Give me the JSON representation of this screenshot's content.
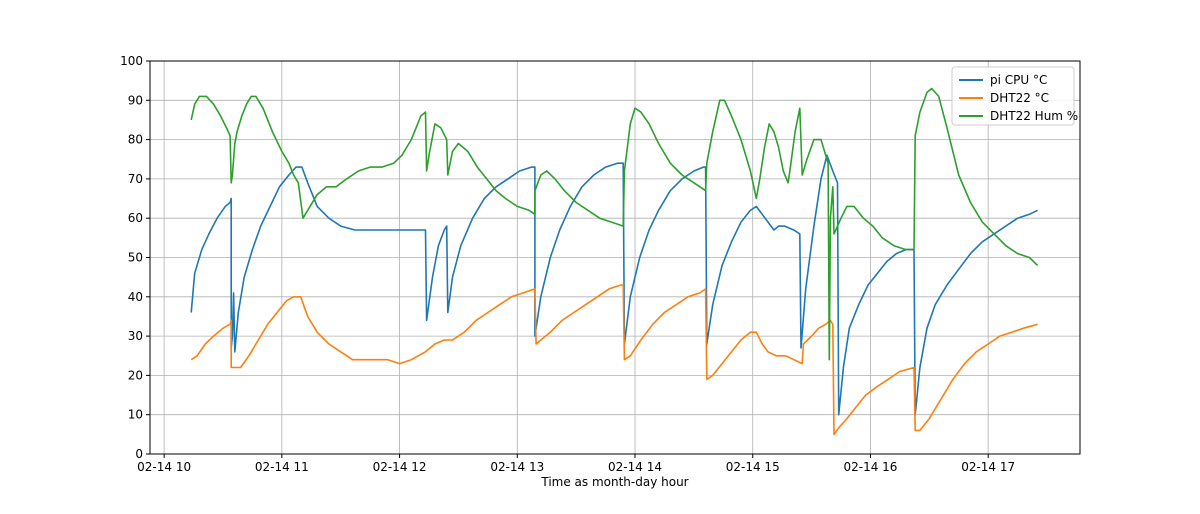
{
  "chart_data": {
    "type": "line",
    "title": "",
    "xlabel": "Time as month-day hour",
    "ylabel": "",
    "xlim": [
      -0.12,
      7.78
    ],
    "ylim": [
      0,
      100
    ],
    "x_ticks": [
      0,
      1,
      2,
      3,
      4,
      5,
      6,
      7
    ],
    "x_tick_labels": [
      "02-14 10",
      "02-14 11",
      "02-14 12",
      "02-14 13",
      "02-14 14",
      "02-14 15",
      "02-14 16",
      "02-14 17"
    ],
    "y_ticks": [
      0,
      10,
      20,
      30,
      40,
      50,
      60,
      70,
      80,
      90,
      100
    ],
    "grid": true,
    "legend_position": "top-right",
    "series": [
      {
        "name": "pi CPU °C",
        "color": "#1f77b4",
        "points": [
          [
            0.23,
            36
          ],
          [
            0.26,
            46
          ],
          [
            0.32,
            52
          ],
          [
            0.38,
            56
          ],
          [
            0.45,
            60
          ],
          [
            0.52,
            63
          ],
          [
            0.56,
            64
          ],
          [
            0.57,
            65
          ],
          [
            0.57,
            27
          ],
          [
            0.58,
            30
          ],
          [
            0.59,
            41
          ],
          [
            0.6,
            26
          ],
          [
            0.63,
            36
          ],
          [
            0.68,
            45
          ],
          [
            0.75,
            52
          ],
          [
            0.82,
            58
          ],
          [
            0.9,
            63
          ],
          [
            0.98,
            68
          ],
          [
            1.06,
            71
          ],
          [
            1.12,
            73
          ],
          [
            1.17,
            73
          ],
          [
            1.22,
            69
          ],
          [
            1.3,
            63
          ],
          [
            1.4,
            60
          ],
          [
            1.5,
            58
          ],
          [
            1.62,
            57
          ],
          [
            1.75,
            57
          ],
          [
            1.9,
            57
          ],
          [
            2.0,
            57
          ],
          [
            2.1,
            57
          ],
          [
            2.22,
            57
          ],
          [
            2.23,
            34
          ],
          [
            2.28,
            45
          ],
          [
            2.33,
            53
          ],
          [
            2.38,
            57
          ],
          [
            2.4,
            58
          ],
          [
            2.41,
            36
          ],
          [
            2.45,
            45
          ],
          [
            2.52,
            53
          ],
          [
            2.62,
            60
          ],
          [
            2.72,
            65
          ],
          [
            2.82,
            68
          ],
          [
            2.92,
            70
          ],
          [
            3.02,
            72
          ],
          [
            3.12,
            73
          ],
          [
            3.15,
            73
          ],
          [
            3.15,
            30
          ],
          [
            3.2,
            40
          ],
          [
            3.28,
            50
          ],
          [
            3.36,
            57
          ],
          [
            3.45,
            63
          ],
          [
            3.55,
            68
          ],
          [
            3.65,
            71
          ],
          [
            3.75,
            73
          ],
          [
            3.85,
            74
          ],
          [
            3.9,
            74
          ],
          [
            3.91,
            28
          ],
          [
            3.96,
            40
          ],
          [
            4.04,
            50
          ],
          [
            4.12,
            57
          ],
          [
            4.2,
            62
          ],
          [
            4.3,
            67
          ],
          [
            4.4,
            70
          ],
          [
            4.5,
            72
          ],
          [
            4.58,
            73
          ],
          [
            4.6,
            73
          ],
          [
            4.61,
            28
          ],
          [
            4.66,
            38
          ],
          [
            4.74,
            48
          ],
          [
            4.82,
            54
          ],
          [
            4.9,
            59
          ],
          [
            4.98,
            62
          ],
          [
            5.03,
            63
          ],
          [
            5.08,
            61
          ],
          [
            5.13,
            59
          ],
          [
            5.18,
            57
          ],
          [
            5.22,
            58
          ],
          [
            5.27,
            58
          ],
          [
            5.35,
            57
          ],
          [
            5.4,
            56
          ],
          [
            5.41,
            27
          ],
          [
            5.45,
            42
          ],
          [
            5.52,
            58
          ],
          [
            5.58,
            70
          ],
          [
            5.63,
            76
          ],
          [
            5.68,
            72
          ],
          [
            5.72,
            69
          ],
          [
            5.73,
            10
          ],
          [
            5.77,
            22
          ],
          [
            5.82,
            32
          ],
          [
            5.9,
            38
          ],
          [
            5.98,
            43
          ],
          [
            6.06,
            46
          ],
          [
            6.14,
            49
          ],
          [
            6.22,
            51
          ],
          [
            6.3,
            52
          ],
          [
            6.37,
            52
          ],
          [
            6.38,
            10
          ],
          [
            6.42,
            22
          ],
          [
            6.48,
            32
          ],
          [
            6.55,
            38
          ],
          [
            6.65,
            43
          ],
          [
            6.75,
            47
          ],
          [
            6.85,
            51
          ],
          [
            6.95,
            54
          ],
          [
            7.05,
            56
          ],
          [
            7.15,
            58
          ],
          [
            7.25,
            60
          ],
          [
            7.35,
            61
          ],
          [
            7.42,
            62
          ]
        ]
      },
      {
        "name": "DHT22 °C",
        "color": "#ff7f0e",
        "points": [
          [
            0.23,
            24
          ],
          [
            0.28,
            25
          ],
          [
            0.35,
            28
          ],
          [
            0.42,
            30
          ],
          [
            0.5,
            32
          ],
          [
            0.56,
            33
          ],
          [
            0.57,
            34
          ],
          [
            0.57,
            22
          ],
          [
            0.65,
            22
          ],
          [
            0.72,
            25
          ],
          [
            0.8,
            29
          ],
          [
            0.88,
            33
          ],
          [
            0.96,
            36
          ],
          [
            1.04,
            39
          ],
          [
            1.1,
            40
          ],
          [
            1.16,
            40
          ],
          [
            1.22,
            35
          ],
          [
            1.3,
            31
          ],
          [
            1.4,
            28
          ],
          [
            1.5,
            26
          ],
          [
            1.6,
            24
          ],
          [
            1.75,
            24
          ],
          [
            1.9,
            24
          ],
          [
            2.0,
            23
          ],
          [
            2.1,
            24
          ],
          [
            2.22,
            26
          ],
          [
            2.3,
            28
          ],
          [
            2.38,
            29
          ],
          [
            2.45,
            29
          ],
          [
            2.55,
            31
          ],
          [
            2.65,
            34
          ],
          [
            2.75,
            36
          ],
          [
            2.85,
            38
          ],
          [
            2.95,
            40
          ],
          [
            3.05,
            41
          ],
          [
            3.15,
            42
          ],
          [
            3.16,
            28
          ],
          [
            3.2,
            29
          ],
          [
            3.28,
            31
          ],
          [
            3.38,
            34
          ],
          [
            3.48,
            36
          ],
          [
            3.58,
            38
          ],
          [
            3.68,
            40
          ],
          [
            3.78,
            42
          ],
          [
            3.88,
            43
          ],
          [
            3.9,
            43
          ],
          [
            3.91,
            24
          ],
          [
            3.96,
            25
          ],
          [
            4.05,
            29
          ],
          [
            4.15,
            33
          ],
          [
            4.25,
            36
          ],
          [
            4.35,
            38
          ],
          [
            4.45,
            40
          ],
          [
            4.55,
            41
          ],
          [
            4.6,
            42
          ],
          [
            4.61,
            19
          ],
          [
            4.66,
            20
          ],
          [
            4.74,
            23
          ],
          [
            4.82,
            26
          ],
          [
            4.9,
            29
          ],
          [
            4.98,
            31
          ],
          [
            5.03,
            31
          ],
          [
            5.08,
            28
          ],
          [
            5.13,
            26
          ],
          [
            5.2,
            25
          ],
          [
            5.28,
            25
          ],
          [
            5.35,
            24
          ],
          [
            5.42,
            23
          ],
          [
            5.43,
            28
          ],
          [
            5.5,
            30
          ],
          [
            5.56,
            32
          ],
          [
            5.62,
            33
          ],
          [
            5.66,
            34
          ],
          [
            5.68,
            33
          ],
          [
            5.69,
            5
          ],
          [
            5.74,
            7
          ],
          [
            5.8,
            9
          ],
          [
            5.88,
            12
          ],
          [
            5.96,
            15
          ],
          [
            6.05,
            17
          ],
          [
            6.15,
            19
          ],
          [
            6.25,
            21
          ],
          [
            6.37,
            22
          ],
          [
            6.38,
            6
          ],
          [
            6.42,
            6
          ],
          [
            6.5,
            9
          ],
          [
            6.6,
            14
          ],
          [
            6.7,
            19
          ],
          [
            6.8,
            23
          ],
          [
            6.9,
            26
          ],
          [
            7.0,
            28
          ],
          [
            7.1,
            30
          ],
          [
            7.2,
            31
          ],
          [
            7.3,
            32
          ],
          [
            7.42,
            33
          ]
        ]
      },
      {
        "name": "DHT22 Hum %",
        "color": "#2ca02c",
        "points": [
          [
            0.23,
            85
          ],
          [
            0.26,
            89
          ],
          [
            0.3,
            91
          ],
          [
            0.36,
            91
          ],
          [
            0.42,
            89
          ],
          [
            0.48,
            86
          ],
          [
            0.53,
            83
          ],
          [
            0.56,
            81
          ],
          [
            0.57,
            69
          ],
          [
            0.58,
            71
          ],
          [
            0.6,
            79
          ],
          [
            0.62,
            82
          ],
          [
            0.66,
            86
          ],
          [
            0.7,
            89
          ],
          [
            0.74,
            91
          ],
          [
            0.78,
            91
          ],
          [
            0.84,
            88
          ],
          [
            0.92,
            82
          ],
          [
            1.0,
            77
          ],
          [
            1.06,
            74
          ],
          [
            1.1,
            71
          ],
          [
            1.14,
            69
          ],
          [
            1.18,
            60
          ],
          [
            1.22,
            62
          ],
          [
            1.3,
            66
          ],
          [
            1.38,
            68
          ],
          [
            1.46,
            68
          ],
          [
            1.55,
            70
          ],
          [
            1.65,
            72
          ],
          [
            1.75,
            73
          ],
          [
            1.85,
            73
          ],
          [
            1.95,
            74
          ],
          [
            2.02,
            76
          ],
          [
            2.06,
            78
          ],
          [
            2.1,
            80
          ],
          [
            2.14,
            83
          ],
          [
            2.18,
            86
          ],
          [
            2.22,
            87
          ],
          [
            2.23,
            72
          ],
          [
            2.25,
            76
          ],
          [
            2.3,
            84
          ],
          [
            2.35,
            83
          ],
          [
            2.4,
            80
          ],
          [
            2.41,
            71
          ],
          [
            2.45,
            77
          ],
          [
            2.5,
            79
          ],
          [
            2.58,
            77
          ],
          [
            2.66,
            73
          ],
          [
            2.74,
            70
          ],
          [
            2.82,
            67
          ],
          [
            2.9,
            65
          ],
          [
            3.0,
            63
          ],
          [
            3.1,
            62
          ],
          [
            3.15,
            61
          ],
          [
            3.15,
            67
          ],
          [
            3.2,
            71
          ],
          [
            3.25,
            72
          ],
          [
            3.32,
            70
          ],
          [
            3.4,
            67
          ],
          [
            3.5,
            64
          ],
          [
            3.6,
            62
          ],
          [
            3.7,
            60
          ],
          [
            3.8,
            59
          ],
          [
            3.9,
            58
          ],
          [
            3.91,
            72
          ],
          [
            3.96,
            84
          ],
          [
            4.0,
            88
          ],
          [
            4.05,
            87
          ],
          [
            4.12,
            84
          ],
          [
            4.2,
            79
          ],
          [
            4.3,
            74
          ],
          [
            4.4,
            71
          ],
          [
            4.5,
            69
          ],
          [
            4.6,
            67
          ],
          [
            4.61,
            74
          ],
          [
            4.66,
            82
          ],
          [
            4.72,
            90
          ],
          [
            4.76,
            90
          ],
          [
            4.82,
            86
          ],
          [
            4.9,
            80
          ],
          [
            4.98,
            72
          ],
          [
            5.03,
            65
          ],
          [
            5.06,
            70
          ],
          [
            5.1,
            78
          ],
          [
            5.14,
            84
          ],
          [
            5.18,
            82
          ],
          [
            5.22,
            78
          ],
          [
            5.26,
            72
          ],
          [
            5.3,
            69
          ],
          [
            5.32,
            73
          ],
          [
            5.36,
            82
          ],
          [
            5.4,
            88
          ],
          [
            5.42,
            71
          ],
          [
            5.46,
            75
          ],
          [
            5.52,
            80
          ],
          [
            5.58,
            80
          ],
          [
            5.64,
            74
          ],
          [
            5.65,
            24
          ],
          [
            5.66,
            60
          ],
          [
            5.68,
            68
          ],
          [
            5.69,
            56
          ],
          [
            5.75,
            60
          ],
          [
            5.8,
            63
          ],
          [
            5.86,
            63
          ],
          [
            5.94,
            60
          ],
          [
            6.02,
            58
          ],
          [
            6.1,
            55
          ],
          [
            6.2,
            53
          ],
          [
            6.3,
            52
          ],
          [
            6.37,
            52
          ],
          [
            6.38,
            81
          ],
          [
            6.42,
            87
          ],
          [
            6.48,
            92
          ],
          [
            6.52,
            93
          ],
          [
            6.58,
            91
          ],
          [
            6.65,
            83
          ],
          [
            6.75,
            71
          ],
          [
            6.85,
            64
          ],
          [
            6.95,
            59
          ],
          [
            7.05,
            56
          ],
          [
            7.15,
            53
          ],
          [
            7.25,
            51
          ],
          [
            7.35,
            50
          ],
          [
            7.42,
            48
          ]
        ]
      }
    ]
  }
}
